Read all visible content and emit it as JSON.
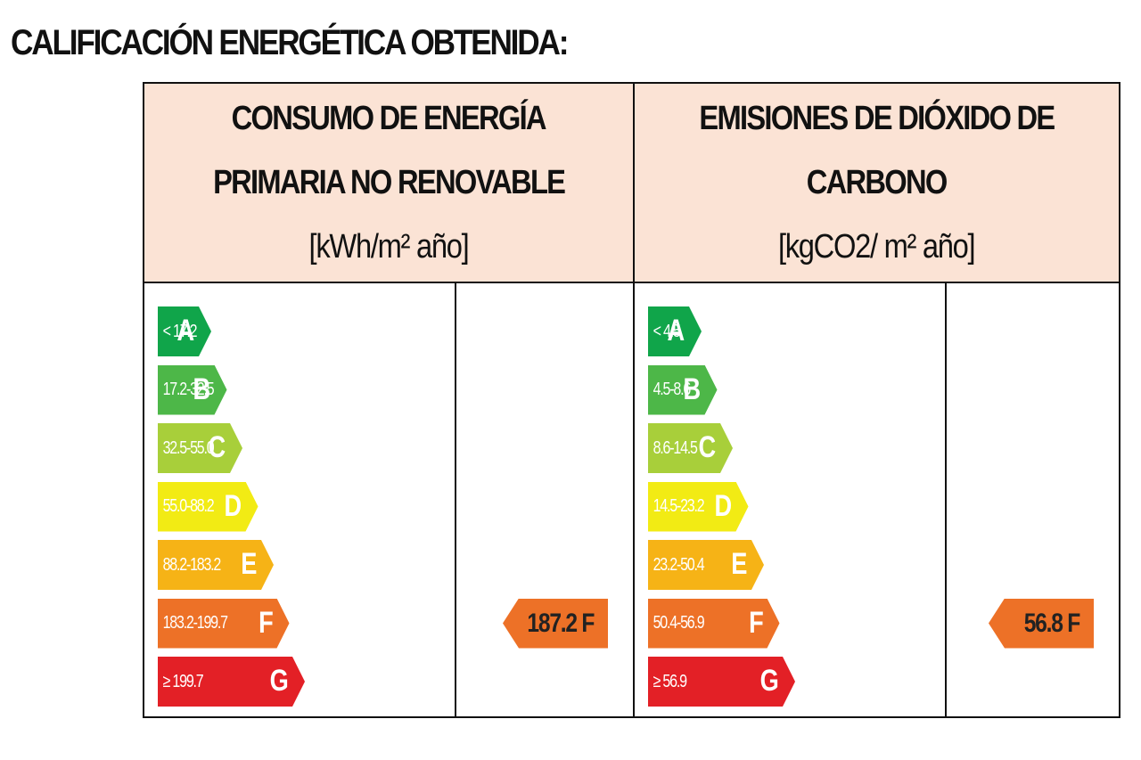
{
  "page": {
    "title": "CALIFICACIÓN ENERGÉTICA OBTENIDA:"
  },
  "energy": {
    "header": [
      "CONSUMO DE ENERGÍA",
      "PRIMARIA NO RENOVABLE",
      "[kWh/m² año]"
    ],
    "bands": [
      {
        "letter": "A",
        "range": "< 17.2",
        "color": "#10a54a"
      },
      {
        "letter": "B",
        "range": "17.2-32.5",
        "color": "#4db748"
      },
      {
        "letter": "C",
        "range": "32.5-55.0",
        "color": "#a8cf3a"
      },
      {
        "letter": "D",
        "range": "55.0-88.2",
        "color": "#f2eb14"
      },
      {
        "letter": "E",
        "range": "88.2-183.2",
        "color": "#f6b316"
      },
      {
        "letter": "F",
        "range": "183.2-199.7",
        "color": "#ed7127"
      },
      {
        "letter": "G",
        "range": "≥ 199.7",
        "color": "#e32026"
      }
    ],
    "result": {
      "text": "187.2 F",
      "letter": "F",
      "color": "#ed7127"
    }
  },
  "emissions": {
    "header": [
      "EMISIONES DE DIÓXIDO DE",
      "CARBONO",
      "[kgCO2/ m² año]"
    ],
    "bands": [
      {
        "letter": "A",
        "range": "< 4.5",
        "color": "#10a54a"
      },
      {
        "letter": "B",
        "range": "4.5-8.6",
        "color": "#4db748"
      },
      {
        "letter": "C",
        "range": "8.6-14.5",
        "color": "#a8cf3a"
      },
      {
        "letter": "D",
        "range": "14.5-23.2",
        "color": "#f2eb14"
      },
      {
        "letter": "E",
        "range": "23.2-50.4",
        "color": "#f6b316"
      },
      {
        "letter": "F",
        "range": "50.4-56.9",
        "color": "#ed7127"
      },
      {
        "letter": "G",
        "range": "≥ 56.9",
        "color": "#e32026"
      }
    ],
    "result": {
      "text": "56.8 F",
      "letter": "F",
      "color": "#ed7127"
    }
  }
}
